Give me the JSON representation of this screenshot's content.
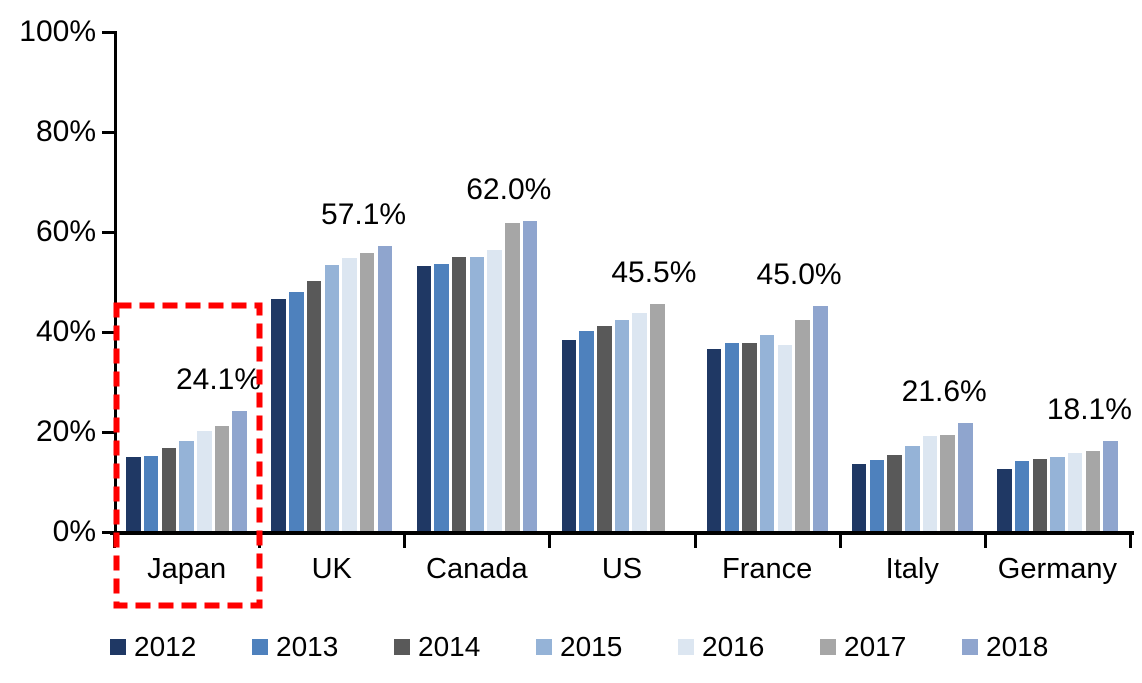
{
  "chart_data": {
    "type": "bar",
    "title": "",
    "categories": [
      "Japan",
      "UK",
      "Canada",
      "US",
      "France",
      "Italy",
      "Germany"
    ],
    "series": [
      {
        "name": "2012",
        "color": "#1F3864",
        "values": [
          14.9,
          46.4,
          53.0,
          38.3,
          36.5,
          13.4,
          12.5
        ]
      },
      {
        "name": "2013",
        "color": "#4E81BD",
        "values": [
          15.1,
          47.9,
          53.4,
          40.1,
          37.6,
          14.2,
          14.1
        ]
      },
      {
        "name": "2014",
        "color": "#595959",
        "values": [
          16.7,
          50.0,
          54.8,
          41.0,
          37.6,
          15.3,
          14.4
        ]
      },
      {
        "name": "2015",
        "color": "#95B3D7",
        "values": [
          18.1,
          53.3,
          54.8,
          42.2,
          39.2,
          17.0,
          14.9
        ]
      },
      {
        "name": "2016",
        "color": "#DCE6F1",
        "values": [
          20.1,
          54.7,
          56.2,
          43.7,
          37.2,
          19.1,
          15.6
        ]
      },
      {
        "name": "2017",
        "color": "#A6A6A6",
        "values": [
          21.1,
          55.7,
          61.6,
          45.5,
          42.2,
          19.3,
          16.1
        ]
      },
      {
        "name": "2018",
        "color": "#8FA5CE",
        "values": [
          24.1,
          57.1,
          62.0,
          null,
          45.0,
          21.6,
          18.1
        ]
      }
    ],
    "data_labels": [
      "24.1%",
      "57.1%",
      "62.0%",
      "45.5%",
      "45.0%",
      "21.6%",
      "18.1%"
    ],
    "y_axis": {
      "min": 0,
      "max": 100,
      "ticks": [
        {
          "value": 0,
          "label": "0%"
        },
        {
          "value": 20,
          "label": "20%"
        },
        {
          "value": 40,
          "label": "40%"
        },
        {
          "value": 60,
          "label": "60%"
        },
        {
          "value": 80,
          "label": "80%"
        },
        {
          "value": 100,
          "label": "100%"
        }
      ]
    },
    "grid": false,
    "legend": {
      "position": "bottom",
      "entries": [
        "2012",
        "2013",
        "2014",
        "2015",
        "2016",
        "2017",
        "2018"
      ]
    },
    "highlight": {
      "category": "Japan",
      "style": "red-dashed-box",
      "color": "#FF0000"
    },
    "axis_color": "#000000",
    "text_color": "#000000"
  }
}
